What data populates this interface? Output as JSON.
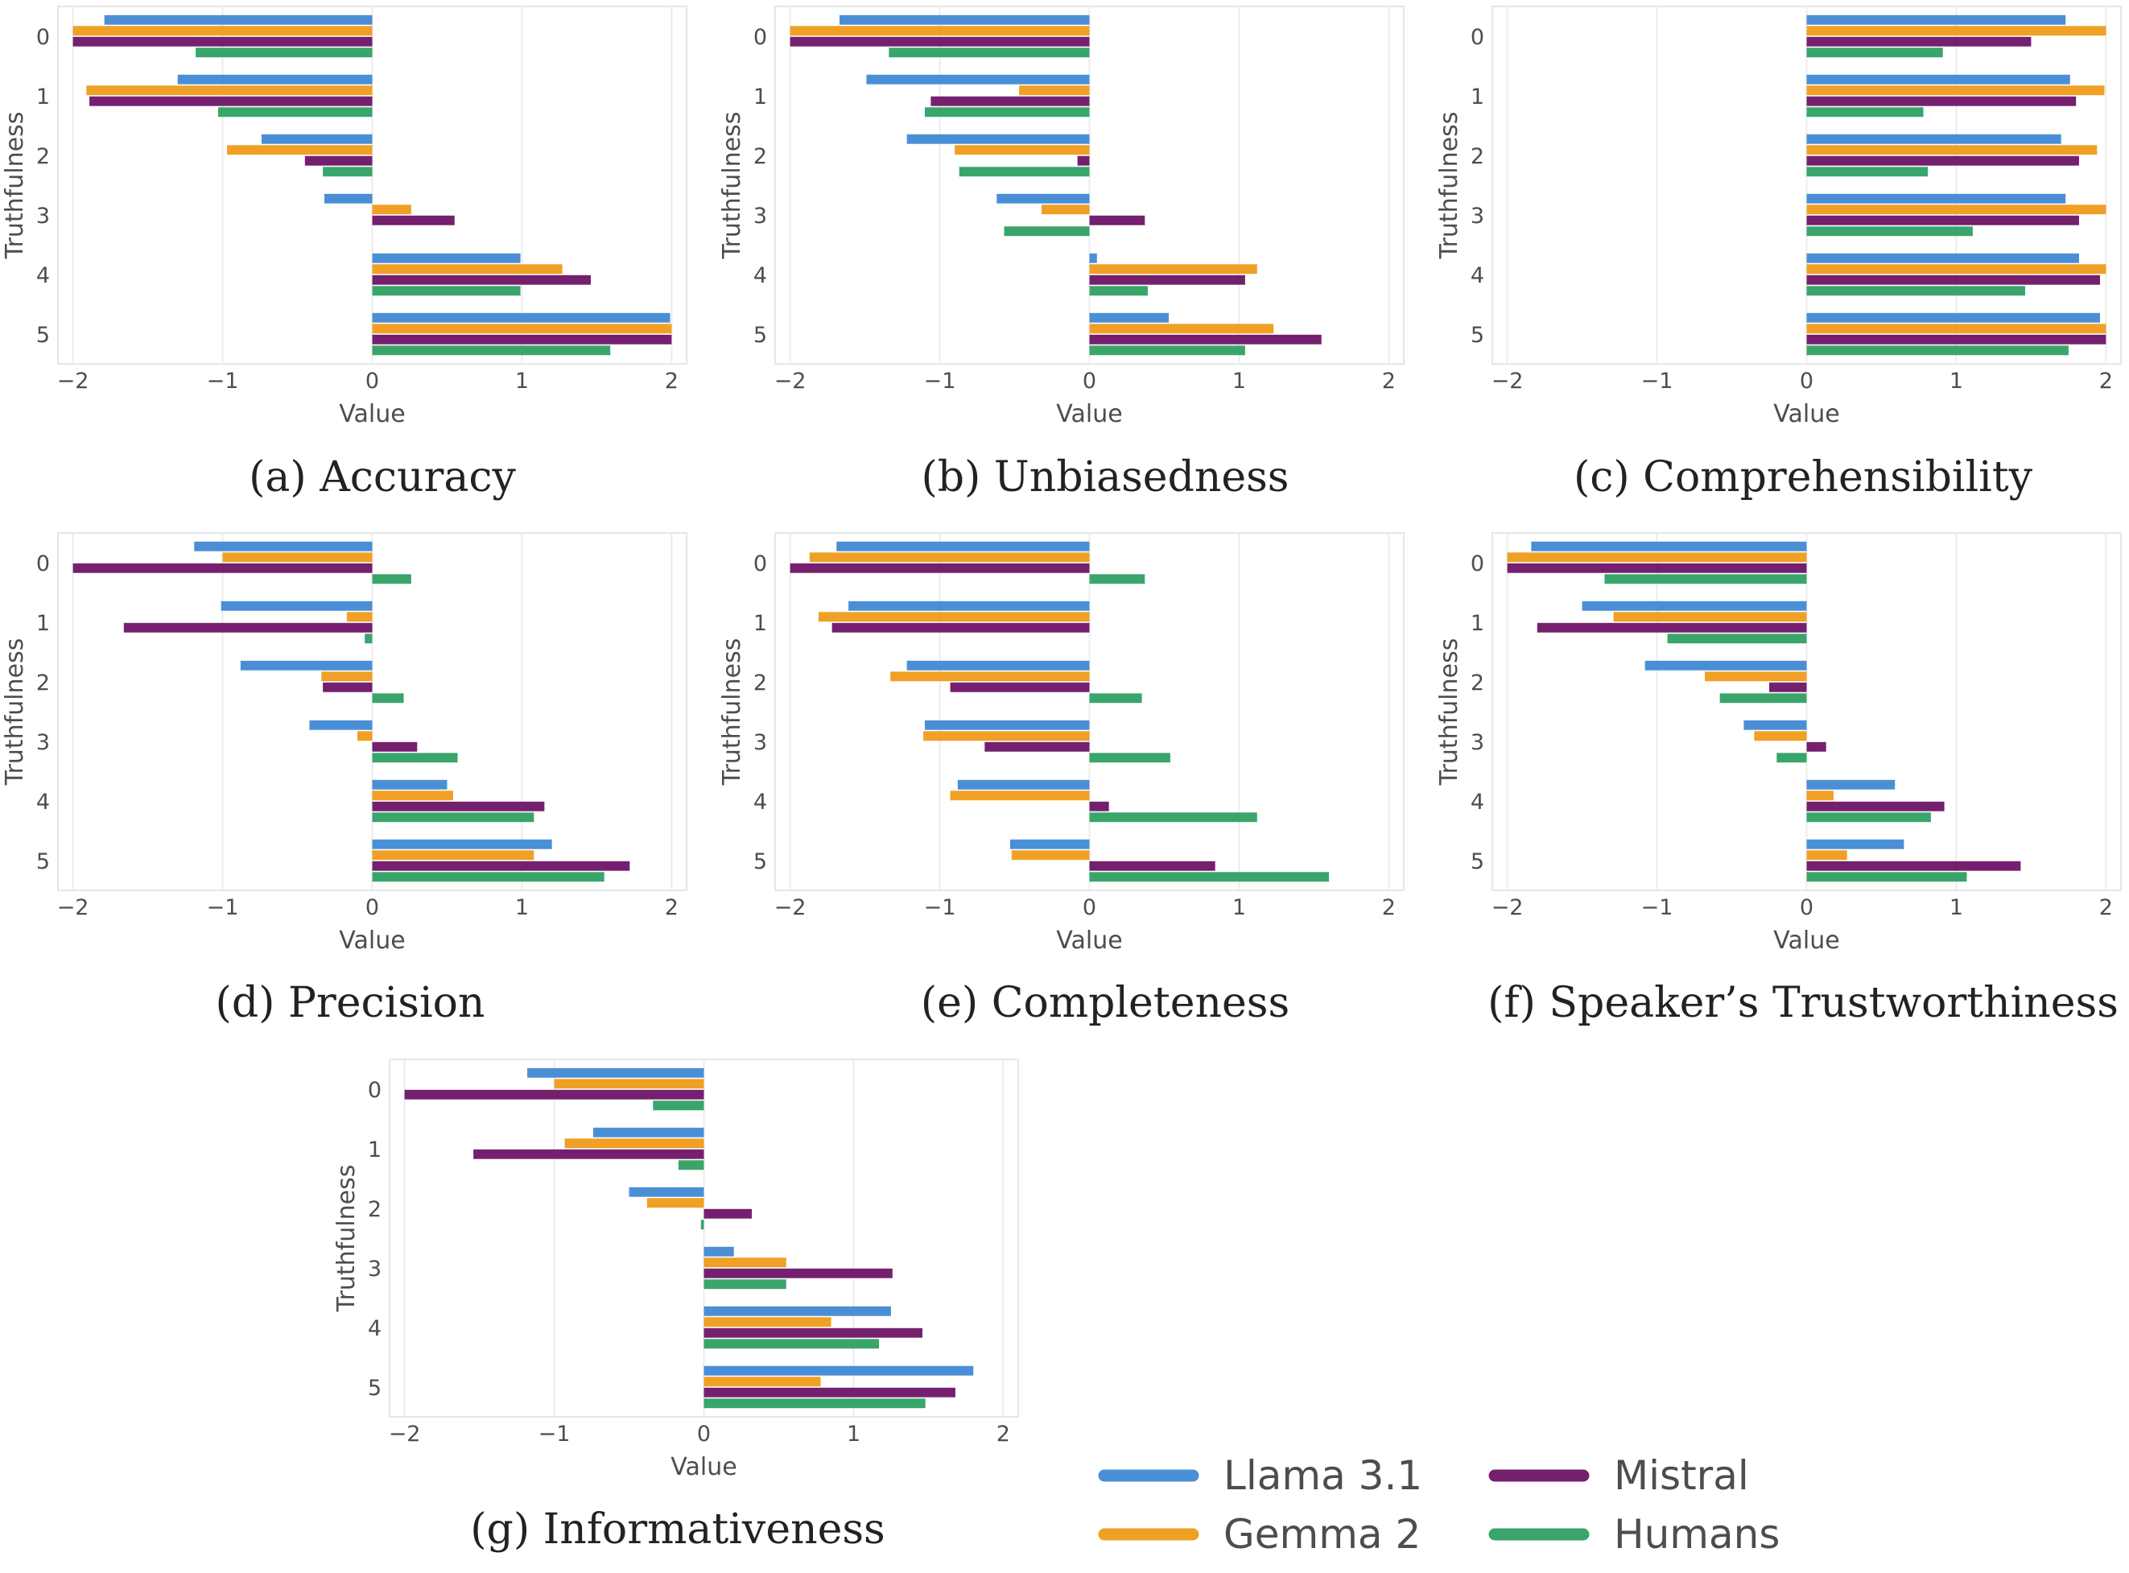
{
  "colors": {
    "Llama 3.1": "#4a8fd6",
    "Gemma 2": "#f0a024",
    "Mistral": "#74206e",
    "Humans": "#3aa56b"
  },
  "legend": [
    "Llama 3.1",
    "Gemma 2",
    "Mistral",
    "Humans"
  ],
  "chart_data": [
    {
      "type": "bar",
      "orientation": "horizontal",
      "caption": "(a) Accuracy",
      "xlabel": "Value",
      "ylabel": "Truthfulness",
      "categories": [
        "0",
        "1",
        "2",
        "3",
        "4",
        "5"
      ],
      "xlim": [
        -2.1,
        2.1
      ],
      "xticks": [
        "−2",
        "−1",
        "0",
        "1",
        "2"
      ],
      "grid": true,
      "series": [
        {
          "name": "Llama 3.1",
          "values": [
            -1.79,
            -1.3,
            -0.74,
            -0.32,
            0.99,
            1.99
          ]
        },
        {
          "name": "Gemma 2",
          "values": [
            -2.0,
            -1.91,
            -0.97,
            0.26,
            1.27,
            2.0
          ]
        },
        {
          "name": "Mistral",
          "values": [
            -2.0,
            -1.89,
            -0.45,
            0.55,
            1.46,
            2.0
          ]
        },
        {
          "name": "Humans",
          "values": [
            -1.18,
            -1.03,
            -0.33,
            0.0,
            0.99,
            1.59
          ]
        }
      ]
    },
    {
      "type": "bar",
      "orientation": "horizontal",
      "caption": "(b) Unbiasedness",
      "xlabel": "Value",
      "ylabel": "Truthfulness",
      "categories": [
        "0",
        "1",
        "2",
        "3",
        "4",
        "5"
      ],
      "xlim": [
        -2.1,
        2.1
      ],
      "xticks": [
        "−2",
        "−1",
        "0",
        "1",
        "2"
      ],
      "grid": true,
      "series": [
        {
          "name": "Llama 3.1",
          "values": [
            -1.67,
            -1.49,
            -1.22,
            -0.62,
            0.05,
            0.53
          ]
        },
        {
          "name": "Gemma 2",
          "values": [
            -2.0,
            -0.47,
            -0.9,
            -0.32,
            1.12,
            1.23
          ]
        },
        {
          "name": "Mistral",
          "values": [
            -2.0,
            -1.06,
            -0.08,
            0.37,
            1.04,
            1.55
          ]
        },
        {
          "name": "Humans",
          "values": [
            -1.34,
            -1.1,
            -0.87,
            -0.57,
            0.39,
            1.04
          ]
        }
      ]
    },
    {
      "type": "bar",
      "orientation": "horizontal",
      "caption": "(c) Comprehensibility",
      "xlabel": "Value",
      "ylabel": "Truthfulness",
      "categories": [
        "0",
        "1",
        "2",
        "3",
        "4",
        "5"
      ],
      "xlim": [
        -2.1,
        2.1
      ],
      "xticks": [
        "−2",
        "−1",
        "0",
        "1",
        "2"
      ],
      "grid": true,
      "series": [
        {
          "name": "Llama 3.1",
          "values": [
            1.73,
            1.76,
            1.7,
            1.73,
            1.82,
            1.96
          ]
        },
        {
          "name": "Gemma 2",
          "values": [
            2.0,
            1.99,
            1.94,
            2.0,
            2.0,
            2.0
          ]
        },
        {
          "name": "Mistral",
          "values": [
            1.5,
            1.8,
            1.82,
            1.82,
            1.96,
            2.0
          ]
        },
        {
          "name": "Humans",
          "values": [
            0.91,
            0.78,
            0.81,
            1.11,
            1.46,
            1.75
          ]
        }
      ]
    },
    {
      "type": "bar",
      "orientation": "horizontal",
      "caption": "(d) Precision",
      "xlabel": "Value",
      "ylabel": "Truthfulness",
      "categories": [
        "0",
        "1",
        "2",
        "3",
        "4",
        "5"
      ],
      "xlim": [
        -2.1,
        2.1
      ],
      "xticks": [
        "−2",
        "−1",
        "0",
        "1",
        "2"
      ],
      "grid": true,
      "series": [
        {
          "name": "Llama 3.1",
          "values": [
            -1.19,
            -1.01,
            -0.88,
            -0.42,
            0.5,
            1.2
          ]
        },
        {
          "name": "Gemma 2",
          "values": [
            -1.0,
            -0.17,
            -0.34,
            -0.1,
            0.54,
            1.08
          ]
        },
        {
          "name": "Mistral",
          "values": [
            -2.0,
            -1.66,
            -0.33,
            0.3,
            1.15,
            1.72
          ]
        },
        {
          "name": "Humans",
          "values": [
            0.26,
            -0.05,
            0.21,
            0.57,
            1.08,
            1.55
          ]
        }
      ]
    },
    {
      "type": "bar",
      "orientation": "horizontal",
      "caption": "(e) Completeness",
      "xlabel": "Value",
      "ylabel": "Truthfulness",
      "categories": [
        "0",
        "1",
        "2",
        "3",
        "4",
        "5"
      ],
      "xlim": [
        -2.1,
        2.1
      ],
      "xticks": [
        "−2",
        "−1",
        "0",
        "1",
        "2"
      ],
      "grid": true,
      "series": [
        {
          "name": "Llama 3.1",
          "values": [
            -1.69,
            -1.61,
            -1.22,
            -1.1,
            -0.88,
            -0.53
          ]
        },
        {
          "name": "Gemma 2",
          "values": [
            -1.87,
            -1.81,
            -1.33,
            -1.11,
            -0.93,
            -0.52
          ]
        },
        {
          "name": "Mistral",
          "values": [
            -2.0,
            -1.72,
            -0.93,
            -0.7,
            0.13,
            0.84
          ]
        },
        {
          "name": "Humans",
          "values": [
            0.37,
            0.0,
            0.35,
            0.54,
            1.12,
            1.6
          ]
        }
      ]
    },
    {
      "type": "bar",
      "orientation": "horizontal",
      "caption": "(f) Speaker’s Trustworthiness",
      "xlabel": "Value",
      "ylabel": "Truthfulness",
      "categories": [
        "0",
        "1",
        "2",
        "3",
        "4",
        "5"
      ],
      "xlim": [
        -2.1,
        2.1
      ],
      "xticks": [
        "−2",
        "−1",
        "0",
        "1",
        "2"
      ],
      "grid": true,
      "series": [
        {
          "name": "Llama 3.1",
          "values": [
            -1.84,
            -1.5,
            -1.08,
            -0.42,
            0.59,
            0.65
          ]
        },
        {
          "name": "Gemma 2",
          "values": [
            -2.0,
            -1.29,
            -0.68,
            -0.35,
            0.18,
            0.27
          ]
        },
        {
          "name": "Mistral",
          "values": [
            -2.0,
            -1.8,
            -0.25,
            0.13,
            0.92,
            1.43
          ]
        },
        {
          "name": "Humans",
          "values": [
            -1.35,
            -0.93,
            -0.58,
            -0.2,
            0.83,
            1.07
          ]
        }
      ]
    },
    {
      "type": "bar",
      "orientation": "horizontal",
      "caption": "(g) Informativeness",
      "xlabel": "Value",
      "ylabel": "Truthfulness",
      "categories": [
        "0",
        "1",
        "2",
        "3",
        "4",
        "5"
      ],
      "xlim": [
        -2.1,
        2.1
      ],
      "xticks": [
        "−2",
        "−1",
        "0",
        "1",
        "2"
      ],
      "grid": true,
      "series": [
        {
          "name": "Llama 3.1",
          "values": [
            -1.18,
            -0.74,
            -0.5,
            0.2,
            1.25,
            1.8
          ]
        },
        {
          "name": "Gemma 2",
          "values": [
            -1.0,
            -0.93,
            -0.38,
            0.55,
            0.85,
            0.78
          ]
        },
        {
          "name": "Mistral",
          "values": [
            -2.0,
            -1.54,
            0.32,
            1.26,
            1.46,
            1.68
          ]
        },
        {
          "name": "Humans",
          "values": [
            -0.34,
            -0.17,
            -0.02,
            0.55,
            1.17,
            1.48
          ]
        }
      ]
    }
  ]
}
